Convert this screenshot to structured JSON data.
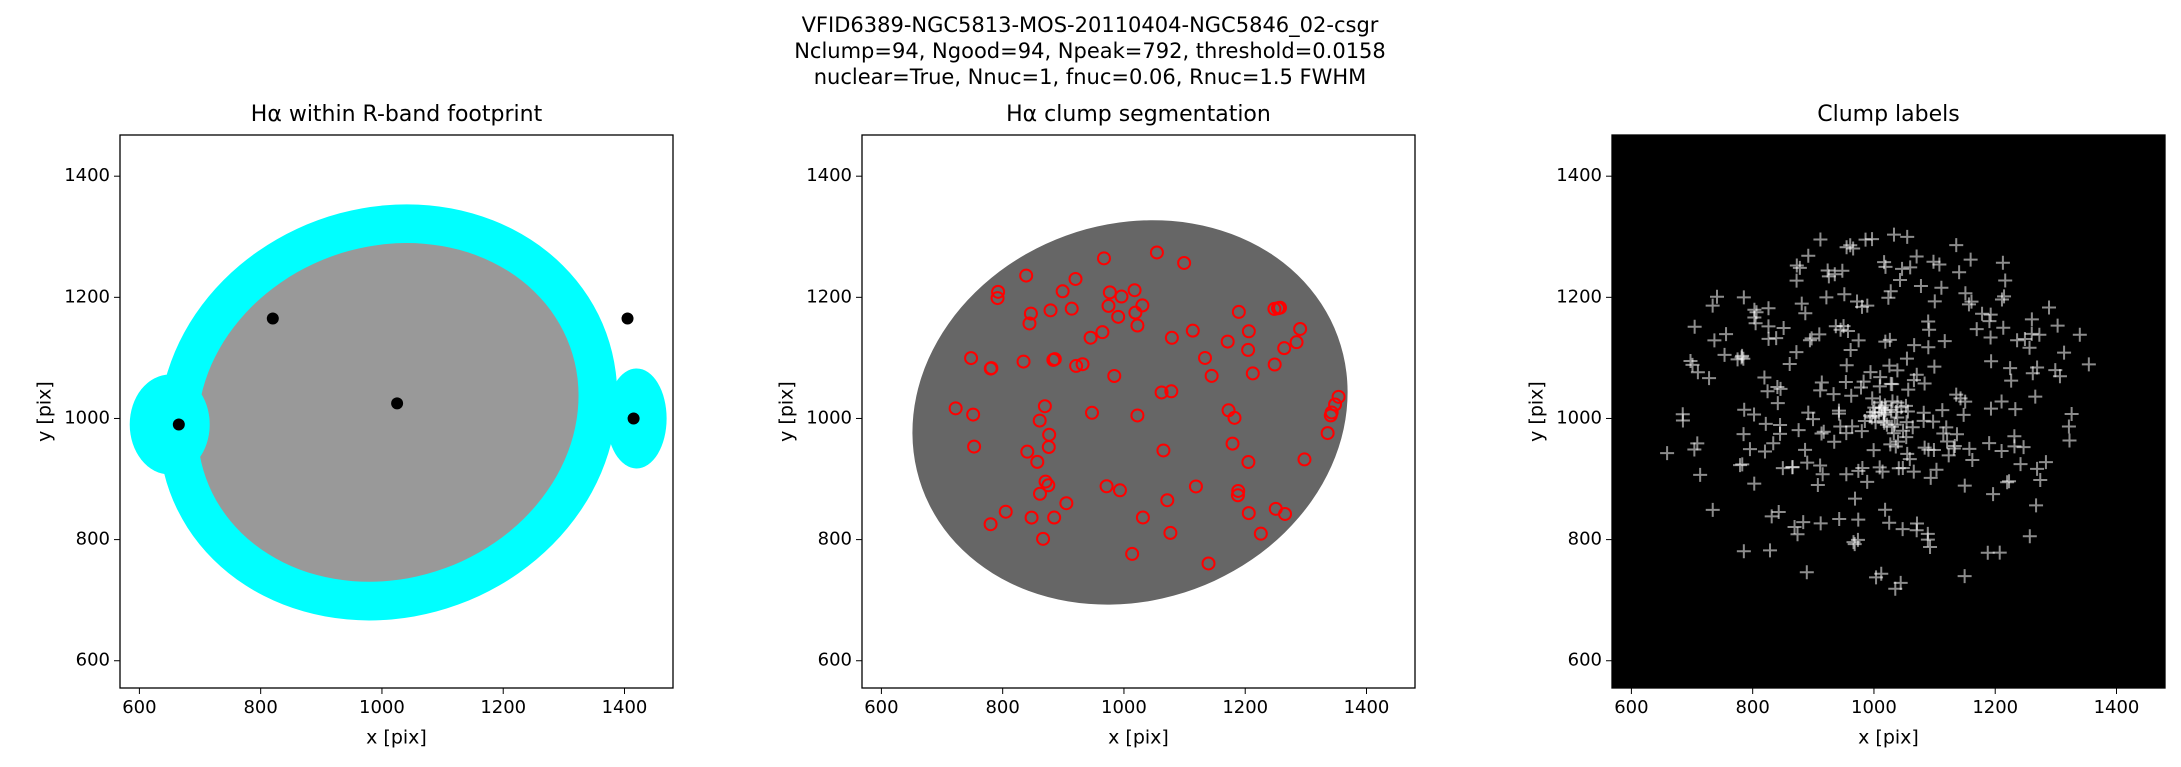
{
  "suptitle": [
    "VFID6389-NGC5813-MOS-20110404-NGC5846_02-csgr",
    "Nclump=94, Ngood=94, Npeak=792, threshold=0.0158",
    "nuclear=True, Nnuc=1, fnuc=0.06, Rnuc=1.5 FWHM"
  ],
  "chart_data": [
    {
      "type": "image",
      "title": "Hα within R-band footprint",
      "xlabel": "x [pix]",
      "ylabel": "y [pix]",
      "xlim": [
        568,
        1480
      ],
      "ylim": [
        555,
        1468
      ],
      "xticks": [
        600,
        800,
        1000,
        1200,
        1400
      ],
      "yticks": [
        600,
        800,
        1000,
        1200,
        1400
      ]
    },
    {
      "type": "image",
      "title": "Hα clump segmentation",
      "xlabel": "x [pix]",
      "ylabel": "y [pix]",
      "xlim": [
        568,
        1480
      ],
      "ylim": [
        555,
        1468
      ],
      "xticks": [
        600,
        800,
        1000,
        1200,
        1400
      ],
      "yticks": [
        600,
        800,
        1000,
        1200,
        1400
      ]
    },
    {
      "type": "image",
      "title": "Clump labels",
      "xlabel": "x [pix]",
      "ylabel": "y [pix]",
      "xlim": [
        568,
        1480
      ],
      "ylim": [
        555,
        1468
      ],
      "xticks": [
        600,
        800,
        1000,
        1200,
        1400
      ],
      "yticks": [
        600,
        800,
        1000,
        1200,
        1400
      ]
    }
  ]
}
